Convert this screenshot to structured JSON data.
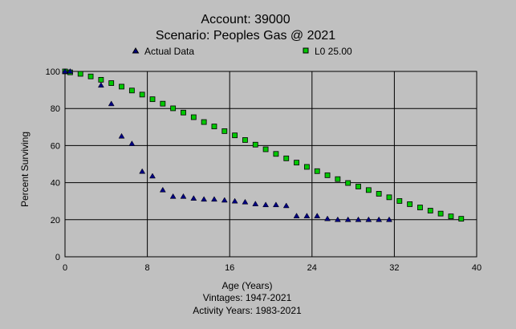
{
  "chart_data": {
    "type": "scatter",
    "title": "Account: 39000",
    "subtitle": "Scenario: Peoples Gas @ 2021",
    "xlabel": "Age (Years)",
    "ylabel": "Percent Surviving",
    "footer_lines": [
      "Vintages: 1947-2021",
      "Activity Years: 1983-2021"
    ],
    "xlim": [
      0,
      40
    ],
    "ylim": [
      0,
      100
    ],
    "x_ticks": [
      0,
      8,
      16,
      24,
      32,
      40
    ],
    "y_ticks": [
      0,
      20,
      40,
      60,
      80,
      100
    ],
    "x_tick_labels": [
      "0",
      "8",
      "16",
      "24",
      "32",
      "40"
    ],
    "y_tick_labels": [
      "0",
      "20",
      "40",
      "60",
      "80",
      "100"
    ],
    "grid": true,
    "legend_position": "top",
    "series": [
      {
        "name": "Actual Data",
        "marker": "triangle",
        "color": "#000080",
        "x": [
          0,
          0.5,
          3.5,
          4.5,
          5.5,
          6.5,
          7.5,
          8.5,
          9.5,
          10.5,
          11.5,
          12.5,
          13.5,
          14.5,
          15.5,
          16.5,
          17.5,
          18.5,
          19.5,
          20.5,
          21.5,
          22.5,
          23.5,
          24.5,
          25.5,
          26.5,
          27.5,
          28.5,
          29.5,
          30.5,
          31.5
        ],
        "y": [
          100,
          100,
          92.5,
          82.5,
          65,
          61,
          46,
          43.5,
          36,
          32.5,
          32.5,
          31.5,
          31,
          31,
          30.5,
          30,
          29.5,
          28.5,
          28,
          28,
          27.5,
          22,
          22,
          22,
          20.5,
          20,
          20,
          20,
          20,
          20,
          20
        ]
      },
      {
        "name": "L0 25.00",
        "marker": "square",
        "color": "#00c800",
        "x": [
          0,
          0.5,
          1.5,
          2.5,
          3.5,
          4.5,
          5.5,
          6.5,
          7.5,
          8.5,
          9.5,
          10.5,
          11.5,
          12.5,
          13.5,
          14.5,
          15.5,
          16.5,
          17.5,
          18.5,
          19.5,
          20.5,
          21.5,
          22.5,
          23.5,
          24.5,
          25.5,
          26.5,
          27.5,
          28.5,
          29.5,
          30.5,
          31.5,
          32.5,
          33.5,
          34.5,
          35.5,
          36.5,
          37.5,
          38.5
        ],
        "y": [
          100,
          99.5,
          98.7,
          97.3,
          95.5,
          93.7,
          91.8,
          89.7,
          87.5,
          85,
          82.6,
          80.1,
          77.8,
          75.3,
          72.7,
          70.3,
          67.8,
          65.5,
          63,
          60.5,
          58,
          55.5,
          53.1,
          50.8,
          48.5,
          46.2,
          44,
          41.9,
          39.8,
          37.9,
          36,
          34,
          32.1,
          30.1,
          28.4,
          26.6,
          24.9,
          23.3,
          21.8,
          20.5
        ]
      }
    ]
  }
}
